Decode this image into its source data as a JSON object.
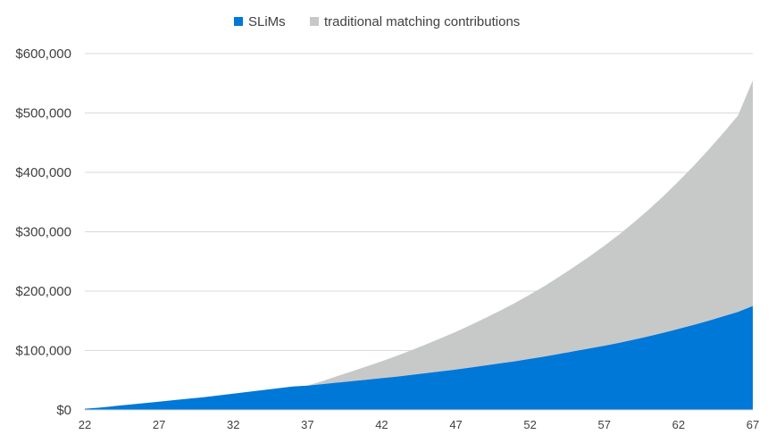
{
  "chart_data": {
    "type": "area",
    "title": "",
    "xlabel": "",
    "ylabel": "",
    "x": [
      22,
      23,
      24,
      25,
      26,
      27,
      28,
      29,
      30,
      31,
      32,
      33,
      34,
      35,
      36,
      37,
      38,
      39,
      40,
      41,
      42,
      43,
      44,
      45,
      46,
      47,
      48,
      49,
      50,
      51,
      52,
      53,
      54,
      55,
      56,
      57,
      58,
      59,
      60,
      61,
      62,
      63,
      64,
      65,
      66,
      67
    ],
    "xlim": [
      22,
      67
    ],
    "ylim": [
      0,
      600000
    ],
    "x_ticks": [
      "22",
      "27",
      "32",
      "37",
      "42",
      "47",
      "52",
      "57",
      "62",
      "67"
    ],
    "y_ticks": [
      "$0",
      "$100,000",
      "$200,000",
      "$300,000",
      "$400,000",
      "$500,000",
      "$600,000"
    ],
    "stacked": true,
    "grid": "horizontal",
    "legend_position": "top",
    "series": [
      {
        "name": "SLiMs",
        "color": "#0078d7",
        "values": [
          2000,
          4000,
          6500,
          9000,
          11500,
          14000,
          16500,
          19000,
          21500,
          24500,
          27500,
          30500,
          33500,
          36500,
          39500,
          41000,
          43500,
          46000,
          48500,
          51000,
          53500,
          56000,
          59000,
          62000,
          65000,
          68000,
          71500,
          75000,
          78500,
          82000,
          86000,
          90000,
          94500,
          99000,
          103500,
          108000,
          113000,
          118500,
          124000,
          130000,
          136500,
          143000,
          150000,
          157500,
          165000,
          175000
        ]
      },
      {
        "name": "traditional matching contributions",
        "color": "#c7c9c9",
        "values": [
          0,
          0,
          0,
          0,
          0,
          0,
          0,
          0,
          0,
          0,
          0,
          0,
          0,
          0,
          0,
          0,
          5000,
          11000,
          16500,
          22500,
          28500,
          35000,
          41500,
          48500,
          56000,
          63500,
          71500,
          80000,
          89000,
          98500,
          108500,
          119000,
          130500,
          142500,
          155000,
          168500,
          182500,
          197500,
          213500,
          230500,
          248500,
          267500,
          287500,
          308500,
          330500,
          380000
        ]
      }
    ]
  }
}
